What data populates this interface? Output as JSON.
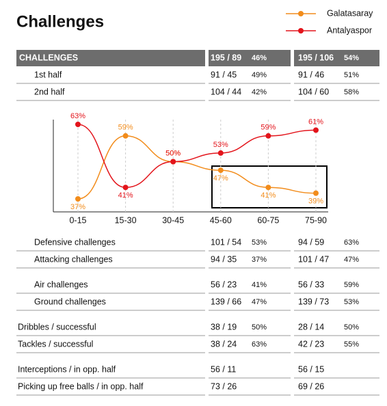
{
  "title": "Challenges",
  "summary": {
    "header": [
      "CHALLENGES",
      "195 / 89",
      "46%",
      "195 / 106",
      "54%"
    ],
    "rows": [
      [
        "1st half",
        "91 / 45",
        "49%",
        "91 / 46",
        "51%"
      ],
      [
        "2nd half",
        "104 / 44",
        "42%",
        "104 / 60",
        "58%"
      ]
    ]
  },
  "chart_data": {
    "type": "line",
    "categories": [
      "0-15",
      "15-30",
      "30-45",
      "45-60",
      "60-75",
      "75-90"
    ],
    "series": [
      {
        "name": "Galatasaray",
        "color": "#f28c1b",
        "values": [
          37,
          59,
          50,
          47,
          41,
          39
        ],
        "value_labels": [
          "37%",
          "59%",
          "50%",
          "47%",
          "41%",
          "39%"
        ]
      },
      {
        "name": "Antalyaspor",
        "color": "#e3141b",
        "values": [
          63,
          41,
          50,
          53,
          59,
          61
        ],
        "value_labels": [
          "63%",
          "41%",
          "50%",
          "53%",
          "59%",
          "61%"
        ]
      }
    ]
  },
  "details": [
    [
      [
        "Defensive challenges",
        "101 / 54",
        "53%",
        "94 / 59",
        "63%"
      ],
      [
        "Attacking challenges",
        "94 / 35",
        "37%",
        "101 / 47",
        "47%"
      ]
    ],
    [
      [
        "Air challenges",
        "56 / 23",
        "41%",
        "56 / 33",
        "59%"
      ],
      [
        "Ground challenges",
        "139 / 66",
        "47%",
        "139 / 73",
        "53%"
      ]
    ],
    [
      [
        "Dribbles / successful",
        "38 / 19",
        "50%",
        "28 / 14",
        "50%"
      ],
      [
        "Tackles / successful",
        "38 / 24",
        "63%",
        "42 / 23",
        "55%"
      ]
    ],
    [
      [
        "Interceptions / in opp. half",
        "56 / 11",
        "56 / 15"
      ],
      [
        "Picking up free balls / in opp. half",
        "73 / 26",
        "69 / 26"
      ]
    ]
  ]
}
